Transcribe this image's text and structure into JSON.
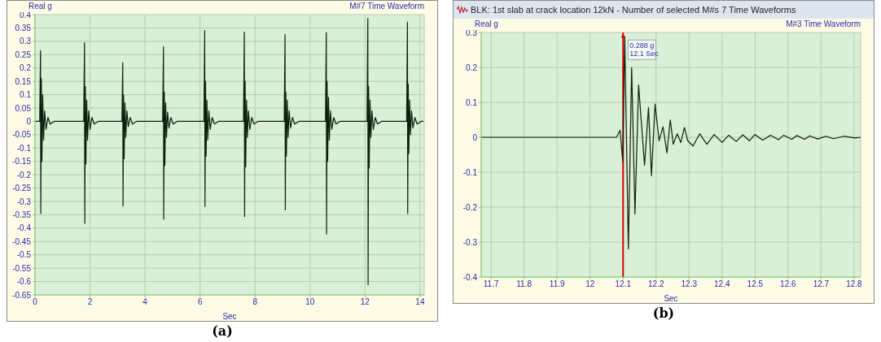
{
  "chart_data": [
    {
      "type": "line",
      "title": "M#7 Time Waveform",
      "ylabel": "Real g",
      "xlabel": "Sec",
      "grid": true,
      "x": [
        0.02,
        0.17,
        0.2,
        0.21,
        0.23,
        0.25,
        0.28,
        0.31,
        0.35,
        0.4,
        0.47,
        0.55,
        0.7,
        1.77,
        1.8,
        1.81,
        1.83,
        1.85,
        1.88,
        1.91,
        1.95,
        2.0,
        2.07,
        2.15,
        2.3,
        3.16,
        3.19,
        3.2,
        3.22,
        3.24,
        3.27,
        3.3,
        3.34,
        3.39,
        3.46,
        3.54,
        3.69,
        4.64,
        4.67,
        4.68,
        4.7,
        4.72,
        4.75,
        4.78,
        4.82,
        4.87,
        4.94,
        5.02,
        5.17,
        6.14,
        6.17,
        6.18,
        6.2,
        6.22,
        6.25,
        6.28,
        6.32,
        6.37,
        6.44,
        6.52,
        6.67,
        7.58,
        7.61,
        7.62,
        7.64,
        7.66,
        7.69,
        7.72,
        7.76,
        7.81,
        7.88,
        7.96,
        8.11,
        9.06,
        9.09,
        9.1,
        9.12,
        9.14,
        9.17,
        9.2,
        9.24,
        9.29,
        9.36,
        9.44,
        9.59,
        10.56,
        10.59,
        10.6,
        10.62,
        10.64,
        10.67,
        10.7,
        10.74,
        10.79,
        10.86,
        10.94,
        11.09,
        12.07,
        12.1,
        12.11,
        12.13,
        12.15,
        12.18,
        12.21,
        12.25,
        12.3,
        12.37,
        12.45,
        12.6,
        13.51,
        13.54,
        13.55,
        13.57,
        13.59,
        13.62,
        13.65,
        13.69,
        13.74,
        13.81,
        13.89,
        14.04,
        14.12
      ],
      "series": [
        {
          "color": "#0d200d",
          "values": [
            0,
            0,
            0.265,
            -0.345,
            0.16,
            -0.15,
            0.1,
            -0.07,
            0.04,
            -0.03,
            0.015,
            -0.01,
            0,
            0,
            0.295,
            -0.382,
            0.13,
            -0.16,
            0.08,
            -0.07,
            0.04,
            -0.03,
            0.015,
            -0.01,
            0,
            0,
            0.22,
            -0.317,
            0.1,
            -0.14,
            0.07,
            -0.06,
            0.04,
            -0.02,
            0.015,
            -0.01,
            0,
            0,
            0.28,
            -0.366,
            0.11,
            -0.165,
            0.07,
            -0.06,
            0.035,
            -0.025,
            0.015,
            -0.01,
            0,
            0,
            0.34,
            -0.319,
            0.15,
            -0.13,
            0.08,
            -0.07,
            0.04,
            -0.03,
            0.015,
            -0.01,
            0,
            0,
            0.335,
            -0.357,
            0.15,
            -0.17,
            0.08,
            -0.06,
            0.04,
            -0.03,
            0.015,
            -0.01,
            0,
            0,
            0.326,
            -0.331,
            0.11,
            -0.13,
            0.08,
            -0.06,
            0.04,
            -0.025,
            0.015,
            -0.01,
            0,
            0,
            0.333,
            -0.422,
            0.15,
            -0.15,
            0.09,
            -0.07,
            0.04,
            -0.03,
            0.015,
            -0.01,
            0,
            0,
            0.386,
            -0.612,
            0.13,
            -0.175,
            0.08,
            -0.06,
            0.04,
            -0.03,
            0.015,
            -0.01,
            0,
            0,
            0.372,
            -0.345,
            0.14,
            -0.12,
            0.08,
            -0.05,
            0.04,
            -0.025,
            0.015,
            -0.01,
            0,
            0
          ]
        }
      ],
      "xlim": [
        0,
        14.15
      ],
      "xticks": [
        0,
        2,
        4,
        6,
        8,
        10,
        12,
        14
      ],
      "ylim": [
        -0.65,
        0.4
      ],
      "yticks": [
        -0.65,
        -0.6,
        -0.55,
        -0.5,
        -0.45,
        -0.4,
        -0.35,
        -0.3,
        -0.25,
        -0.2,
        -0.15,
        -0.1,
        -0.05,
        0,
        0.05,
        0.1,
        0.15,
        0.2,
        0.25,
        0.3,
        0.35,
        0.4
      ],
      "annotations": [
        "(a)"
      ]
    },
    {
      "type": "line",
      "title": "BLK: 1st slab at crack location 12kN - Number of selected M#s 7 Time Waveforms",
      "subtitle": "M#3 Time Waveform",
      "ylabel": "Real g",
      "xlabel": "Sec",
      "grid": true,
      "x": [
        11.67,
        12.08,
        12.091,
        12.099,
        12.105,
        12.116,
        12.126,
        12.136,
        12.147,
        12.165,
        12.177,
        12.186,
        12.197,
        12.209,
        12.221,
        12.233,
        12.243,
        12.252,
        12.264,
        12.275,
        12.286,
        12.296,
        12.312,
        12.332,
        12.354,
        12.376,
        12.4,
        12.42,
        12.443,
        12.463,
        12.483,
        12.499,
        12.523,
        12.547,
        12.571,
        12.587,
        12.611,
        12.627,
        12.65,
        12.666,
        12.69,
        12.714,
        12.738,
        12.77,
        12.802,
        12.82
      ],
      "series": [
        {
          "color": "#0d200d",
          "values": [
            0,
            0,
            0.02,
            -0.07,
            0.288,
            -0.32,
            0.2,
            -0.22,
            0.15,
            -0.08,
            0.085,
            -0.11,
            0.095,
            -0.01,
            0.03,
            -0.045,
            0.05,
            -0.02,
            0.01,
            -0.015,
            0.028,
            -0.01,
            -0.025,
            0.01,
            -0.02,
            0.008,
            -0.015,
            0.006,
            -0.012,
            0.007,
            -0.01,
            0.008,
            -0.008,
            0.006,
            -0.007,
            0.006,
            -0.006,
            0.005,
            -0.006,
            0.004,
            -0.005,
            0.003,
            -0.004,
            0.003,
            -0.002,
            0
          ]
        }
      ],
      "xlim": [
        11.67,
        12.82
      ],
      "xticks": [
        11.7,
        11.8,
        11.9,
        12,
        12.1,
        12.2,
        12.3,
        12.4,
        12.5,
        12.6,
        12.7,
        12.8
      ],
      "ylim": [
        -0.4,
        0.3
      ],
      "yticks": [
        -0.4,
        -0.3,
        -0.2,
        -0.1,
        0,
        0.1,
        0.2,
        0.3
      ],
      "ref_lines": [
        {
          "axis": "x",
          "value": 12.1,
          "color": "#e00000"
        }
      ],
      "annotations": [
        {
          "text": "0.288 g\n12.1 Sec",
          "x": 12.1,
          "y": 0.288
        },
        "(b)"
      ]
    }
  ]
}
